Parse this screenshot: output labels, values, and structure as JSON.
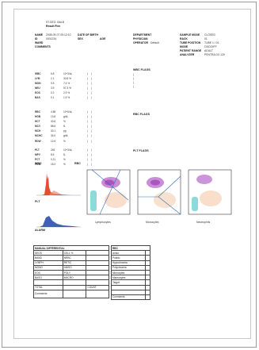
{
  "header": {
    "lab_line1": "ST.GEO. BALB",
    "lab_line2": "Result Flex"
  },
  "patient_block": {
    "row1": [
      "NAME",
      "2008-09-07 09:12:10",
      "DATE OF BIRTH",
      "",
      "DEPARTMENT",
      "SAMPLE MODE",
      "CLOSED"
    ],
    "row2": [
      "ID",
      "0001234",
      "SEX",
      "AGE",
      "PHYSICIAN",
      "RACK",
      "01"
    ],
    "row3": [
      "WARD",
      "",
      "",
      "",
      "OPERATOR",
      "Default",
      "TUBE POSITION",
      "TUBE 1 / 01"
    ],
    "row4": [
      "COMMENTS",
      "",
      "",
      "",
      "",
      "MODE",
      "CBC/DIFF"
    ],
    "row5": [
      "PATIENT RANGE",
      "ADULT"
    ],
    "row6": [
      "ANALYZER",
      "PENTRA DX 120"
    ]
  },
  "params_group1": {
    "names": [
      "WBC",
      "LYM",
      "MON",
      "NEU",
      "EOS",
      "BAS"
    ],
    "values": [
      "6.8",
      "2.1",
      "0.5",
      "3.9",
      "0.2",
      "0.1"
    ],
    "percents": [
      "10^3/uL",
      "30.8 %",
      "7.4 %",
      "57.3 %",
      "2.9 %",
      "1.5 %"
    ],
    "flags": [
      "L",
      "",
      "",
      "",
      "",
      ""
    ]
  },
  "params_group2": {
    "names": [
      "RBC",
      "HGB",
      "HCT",
      "MCV",
      "MCH",
      "MCHC",
      "RDW"
    ],
    "values": [
      "4.58",
      "13.8",
      "40.6",
      "88.6",
      "30.1",
      "34.0",
      "12.6"
    ],
    "units": [
      "10^6/uL",
      "g/dL",
      "%",
      "fL",
      "pg",
      "g/dL",
      "%"
    ]
  },
  "params_group3": {
    "names": [
      "PLT",
      "MPV",
      "PCT",
      "PDW"
    ],
    "values": [
      "245",
      "8.6",
      "0.21",
      "15.2"
    ],
    "units": [
      "10^3/uL",
      "fL",
      "%",
      "%"
    ]
  },
  "histograms": {
    "label_wbc": "WBC",
    "label_rbc": "RBC",
    "label_plt": "PLT",
    "label_alarm": "ALARM"
  },
  "right_panels": {
    "wbc_flags_title": "WBC FLAGS",
    "rbc_flags_title": "RBC FLAGS",
    "plt_flags_title": "PLT FLAGS"
  },
  "scatter_axes": [
    "Lymphocytes",
    "Monocytes",
    "Neutrophils"
  ],
  "manual_differential": {
    "title": "MANUAL DIFFERENTIAL",
    "rows": [
      [
        "SEGS",
        "CELL %",
        ""
      ],
      [
        "BAND",
        "NRBC",
        ""
      ],
      [
        "LYMPH",
        "RETIC",
        ""
      ],
      [
        "MONO",
        "ANISO",
        ""
      ],
      [
        "EOS",
        "POLY",
        ""
      ],
      [
        "BASO",
        "MACRO",
        ""
      ],
      [
        "",
        "",
        ""
      ],
      [
        "TOTAL",
        "",
        "COUNT"
      ],
      [
        "Comments",
        "",
        ""
      ]
    ]
  },
  "morphology": {
    "title": "RBC",
    "rows": [
      "Aniso",
      "Poikilo",
      "Hypochromia",
      "Polychromia",
      "Microcytes",
      "Macrocytes",
      "Target",
      "",
      "",
      "Comments"
    ]
  },
  "colors": {
    "neutrophil_cluster": "#c07ad0",
    "lymph_cluster": "#7fd6d6",
    "mono_cluster": "#f3c8a8",
    "wbc_hist": "#e03a1e",
    "rbc_hist": "#2c4fb0"
  }
}
